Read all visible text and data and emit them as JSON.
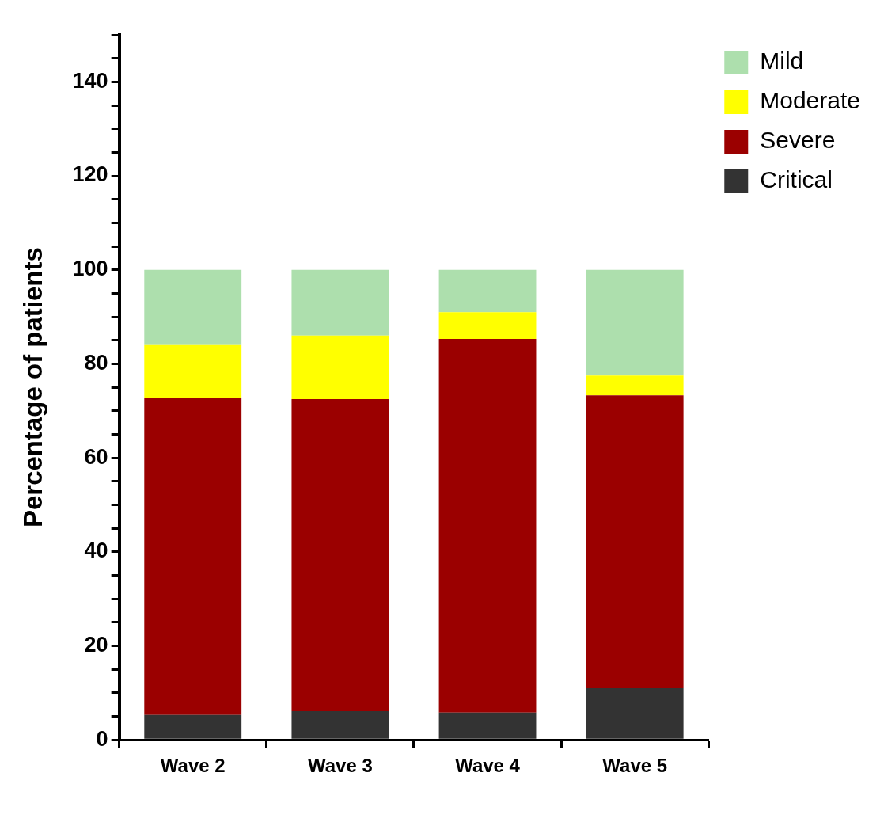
{
  "chart_data": {
    "type": "bar",
    "stacked": true,
    "ylabel": "Percentage of patients",
    "categories": [
      "Wave 2",
      "Wave 3",
      "Wave 4",
      "Wave 5"
    ],
    "series": [
      {
        "name": "Critical",
        "color": "#333333",
        "values": [
          5.3,
          6.1,
          5.8,
          11.0
        ]
      },
      {
        "name": "Severe",
        "color": "#9b0000",
        "values": [
          67.4,
          66.4,
          79.5,
          62.3
        ]
      },
      {
        "name": "Moderate",
        "color": "#ffff00",
        "values": [
          11.3,
          13.5,
          5.7,
          4.2
        ]
      },
      {
        "name": "Mild",
        "color": "#addfad",
        "values": [
          16.0,
          14.0,
          9.0,
          22.5
        ]
      }
    ],
    "ylim": [
      0,
      150
    ],
    "yticks": [
      0,
      {
        "value": 5,
        "label": null
      },
      {
        "value": 10,
        "label": null
      },
      {
        "value": 15,
        "label": null
      },
      20,
      {
        "value": 25,
        "label": null
      },
      {
        "value": 30,
        "label": null
      },
      {
        "value": 35,
        "label": null
      },
      40,
      {
        "value": 45,
        "label": null
      },
      {
        "value": 50,
        "label": null
      },
      {
        "value": 55,
        "label": null
      },
      60,
      {
        "value": 65,
        "label": null
      },
      {
        "value": 70,
        "label": null
      },
      {
        "value": 75,
        "label": null
      },
      80,
      {
        "value": 85,
        "label": null
      },
      {
        "value": 90,
        "label": null
      },
      {
        "value": 95,
        "label": null
      },
      100,
      {
        "value": 105,
        "label": null
      },
      {
        "value": 110,
        "label": null
      },
      {
        "value": 115,
        "label": null
      },
      120,
      {
        "value": 125,
        "label": null
      },
      {
        "value": 130,
        "label": null
      },
      {
        "value": 135,
        "label": null
      },
      140,
      {
        "value": 145,
        "label": null
      },
      {
        "value": 150,
        "label": null
      }
    ],
    "grid": false,
    "legend": "top right"
  }
}
